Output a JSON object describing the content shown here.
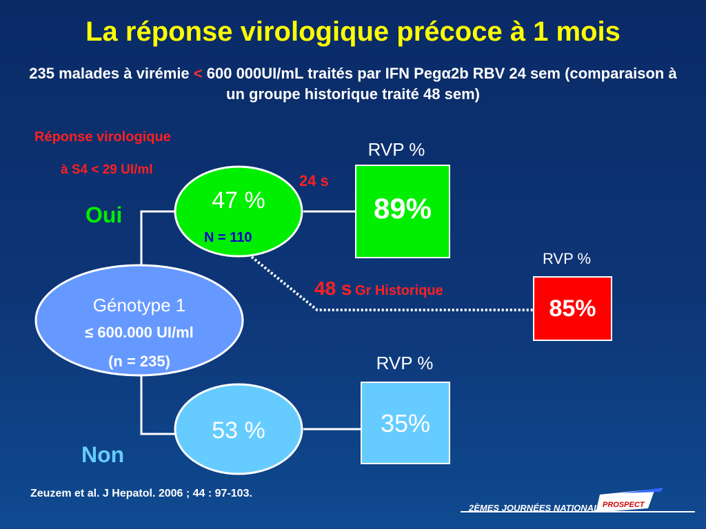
{
  "title": "La réponse virologique précoce à 1 mois",
  "subtitle": {
    "part1": "235 malades à virémie ",
    "lt": "<",
    "part2": " 600 000UI/mL traités par IFN Pegα2b RBV 24 sem (comparaison à un groupe historique traité 48 sem)"
  },
  "response_label": {
    "line1": "Réponse virologique",
    "line2": "à S4 < 29 UI/ml"
  },
  "oui": "Oui",
  "non": "Non",
  "genotype": {
    "line1": "Génotype 1",
    "line2": "≤ 600.000 UI/ml",
    "line3": "(n = 235)"
  },
  "yes_node": {
    "pct": "47 %",
    "n": "N = 110"
  },
  "no_node": {
    "pct": "53 %"
  },
  "duration_24": "24 s",
  "duration_48": {
    "weeks": "48 s",
    "label": "Gr Historique"
  },
  "rvp_heading": "RVP %",
  "outcomes": {
    "yes_24": "89%",
    "historic_48": "85%",
    "no_24": "35%"
  },
  "reference": "Zeuzem et al. J Hepatol. 2006 ; 44 : 97-103.",
  "footer": {
    "brand": "2ÈMES JOURNÉES NATIONALES",
    "logo_text": "PROSPECT"
  },
  "colors": {
    "title": "#ffff00",
    "green": "#00ee00",
    "light_blue": "#66ccff",
    "genotype_fill": "#6699ff",
    "red": "#ff0000"
  }
}
